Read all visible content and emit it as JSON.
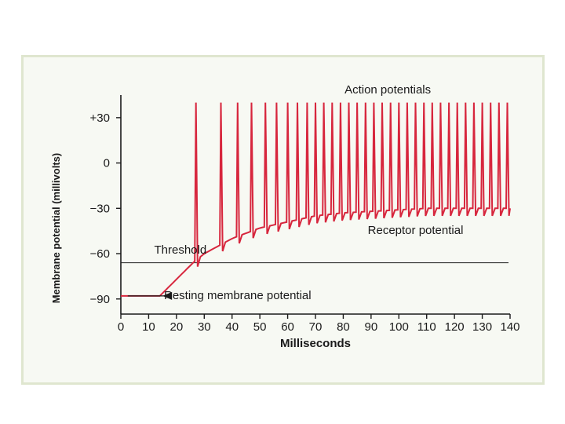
{
  "chart_data": {
    "type": "line",
    "title": "",
    "xlabel": "Milliseconds",
    "ylabel": "Membrane potential (millivolts)",
    "xlim": [
      0,
      140
    ],
    "ylim": [
      -100,
      45
    ],
    "x_ticks": [
      0,
      10,
      20,
      30,
      40,
      50,
      60,
      70,
      80,
      90,
      100,
      110,
      120,
      130,
      140
    ],
    "y_ticks": [
      30,
      0,
      -30,
      -60,
      -90
    ],
    "y_tick_labels": [
      "+30",
      "0",
      "−30",
      "−60",
      "−90"
    ],
    "threshold": -66,
    "series": [
      {
        "name": "",
        "color": "#d7263d",
        "resting_level": -88,
        "resting_until_ms": 14,
        "receptor_curve": [
          [
            14,
            -88
          ],
          [
            20,
            -77
          ],
          [
            26,
            -66
          ],
          [
            30,
            -60
          ],
          [
            40,
            -50
          ],
          [
            50,
            -43
          ],
          [
            60,
            -39
          ],
          [
            70,
            -35
          ],
          [
            80,
            -33
          ],
          [
            90,
            -32
          ],
          [
            100,
            -31
          ],
          [
            110,
            -30
          ],
          [
            120,
            -30
          ],
          [
            130,
            -30
          ],
          [
            140,
            -30
          ]
        ],
        "spike_times_ms": [
          27,
          36,
          42,
          47,
          52,
          56,
          60,
          63.5,
          67,
          70,
          73,
          76,
          79,
          82,
          85,
          88,
          91,
          94,
          97,
          100,
          103,
          106,
          109,
          112,
          115,
          118,
          121,
          124,
          127,
          130,
          133,
          136,
          139
        ],
        "spike_peak_mv": 40
      }
    ],
    "annotations": [
      {
        "text": "Action potentials",
        "x": 96,
        "y": 46,
        "anchor": "middle"
      },
      {
        "text": "Receptor potential",
        "x": 106,
        "y": -47,
        "anchor": "middle"
      },
      {
        "text": "Threshold",
        "x": 12,
        "y": -60,
        "anchor": "start"
      },
      {
        "text": "Resting membrane potential",
        "x": 42,
        "y": -90,
        "anchor": "middle",
        "arrow_to": [
          15,
          -88
        ]
      }
    ]
  },
  "colors": {
    "trace": "#d7263d",
    "frame_background": "#f7f9f3",
    "frame_border": "#dfe6cf",
    "axis": "#1a1a1a"
  }
}
